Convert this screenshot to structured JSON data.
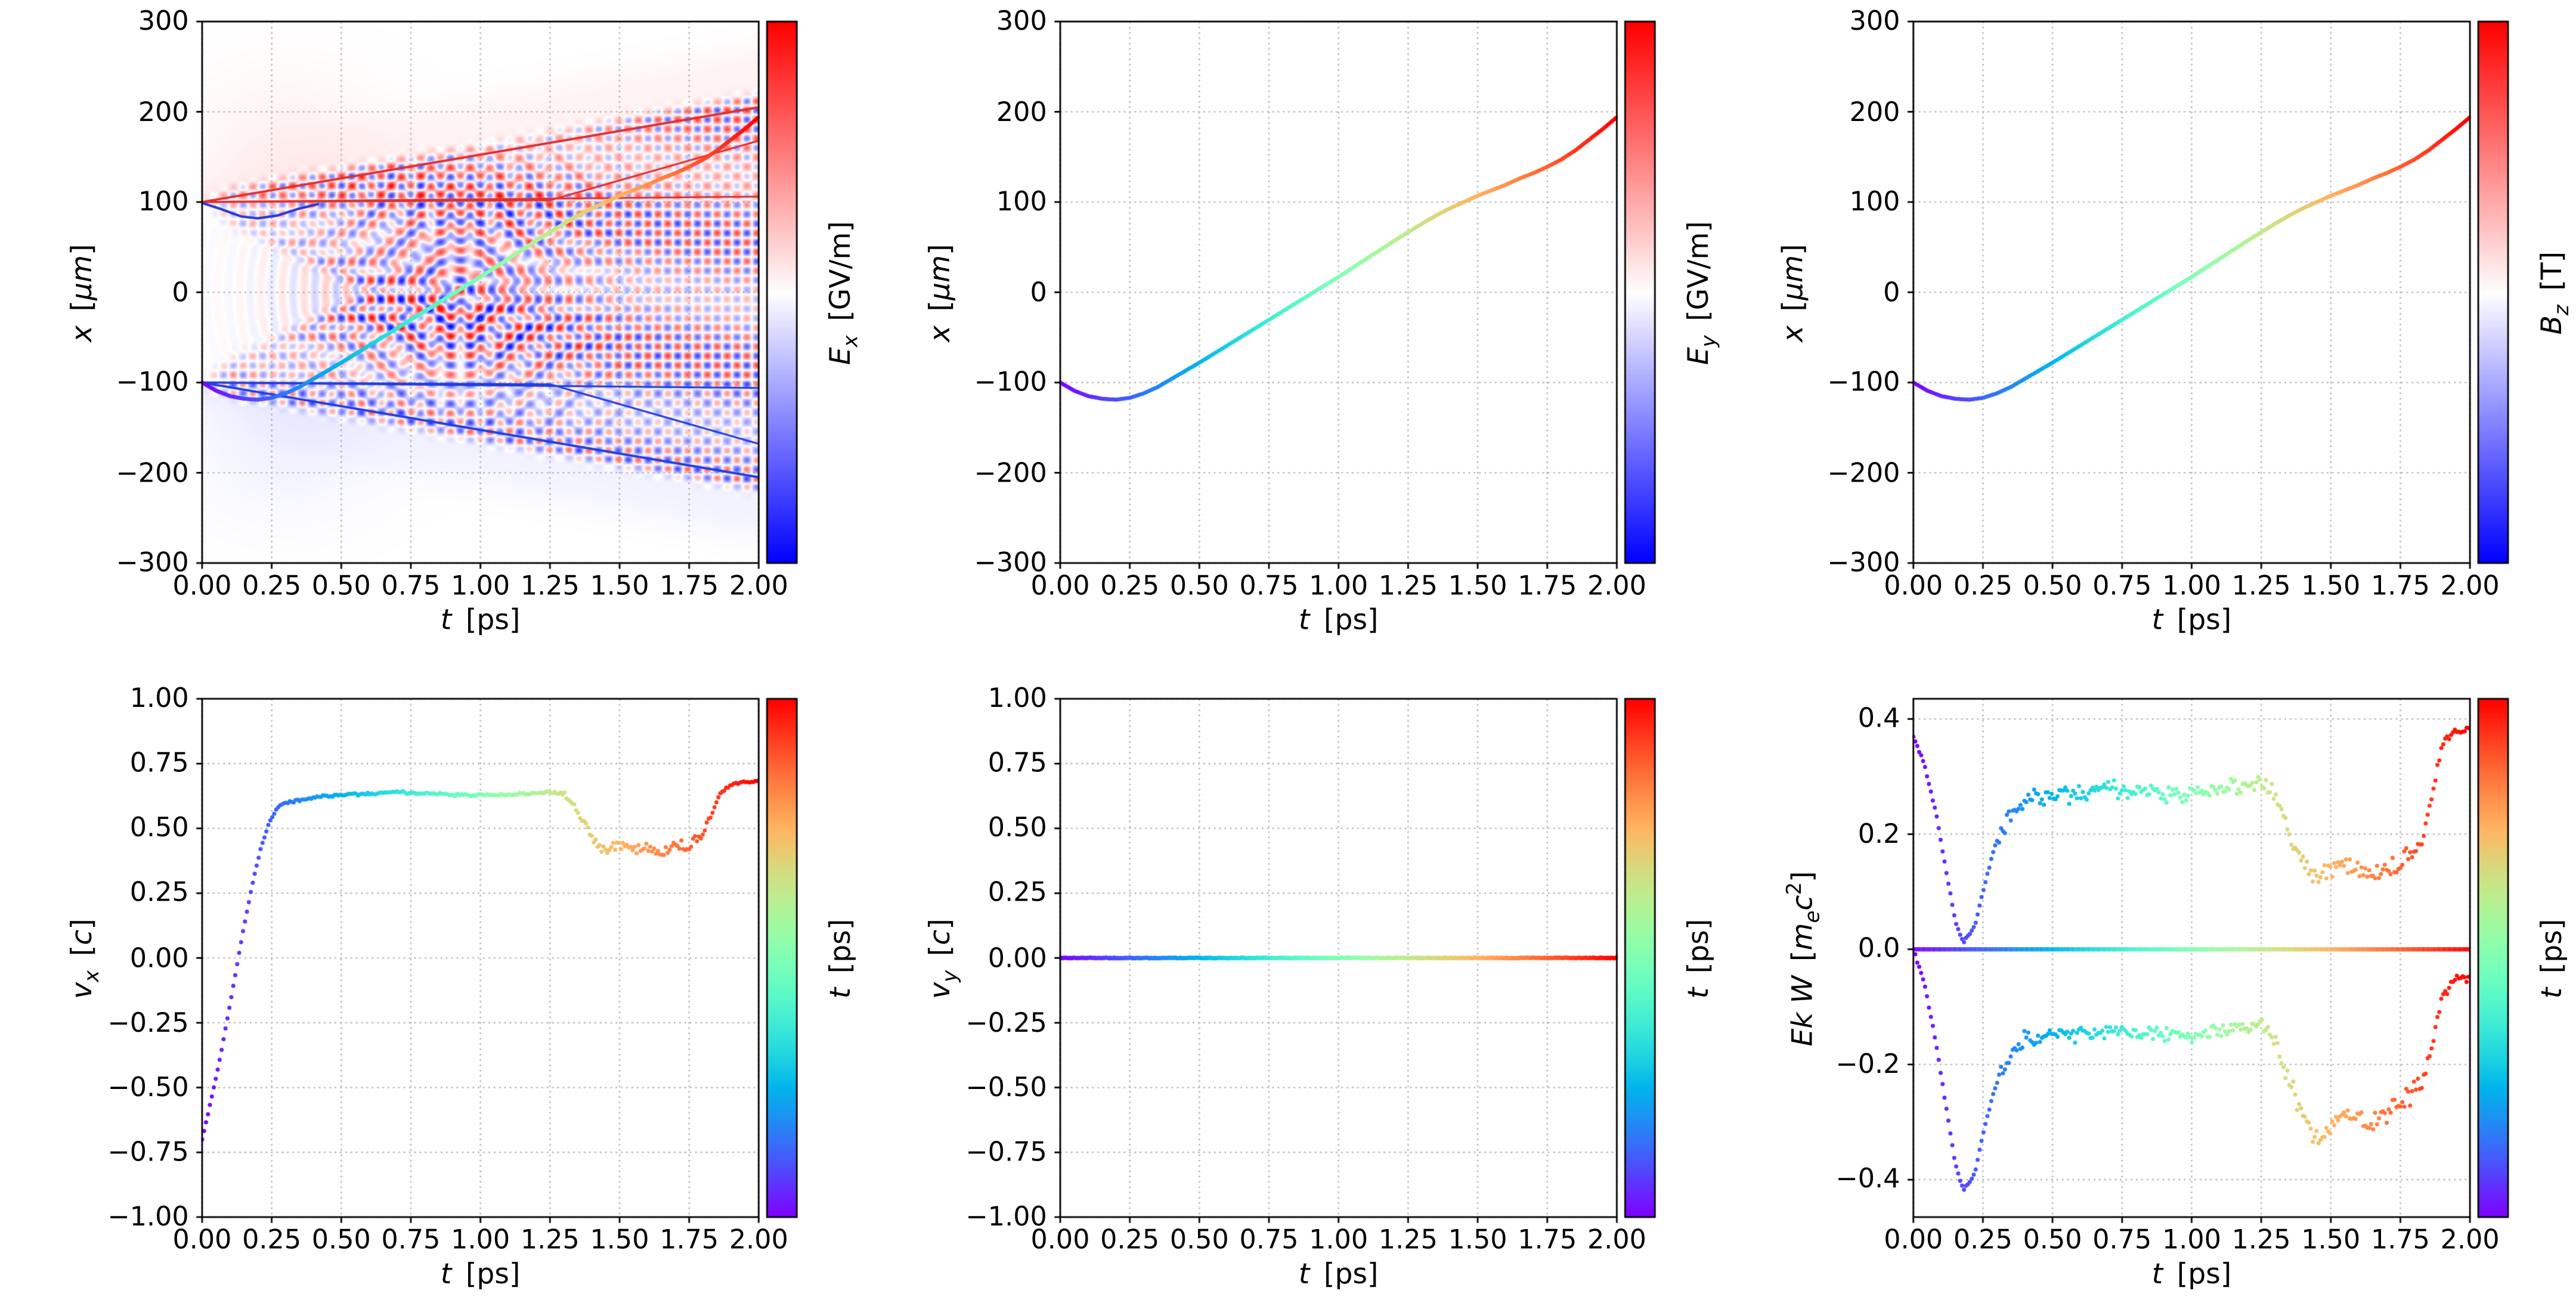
{
  "figure": {
    "background": "#ffffff",
    "kind": "matplotlib-style 2x3 subplot grid of particle tracking diagnostics"
  },
  "colors": {
    "grid": "#b0b0b0",
    "axis": "#000000",
    "red_line": "#e03030",
    "blue_line": "#2040e0"
  },
  "chart_data": {
    "type": "multi-panel",
    "time_range": [
      0,
      2
    ],
    "panels": [
      {
        "id": "x-vs-t-ex",
        "kind": "field+trajectory",
        "xlabel": "*t* [ps]",
        "ylabel": "*x* [*μm*]",
        "cbar_label": "*E_x_* [GV/m]",
        "cbar_cmap": "bwr",
        "xlim": [
          0,
          2
        ],
        "ylim": [
          -300,
          300
        ],
        "xticks": [
          0,
          0.25,
          0.5,
          0.75,
          1,
          1.25,
          1.5,
          1.75,
          2
        ],
        "yticks": [
          -300,
          -200,
          -100,
          0,
          100,
          200,
          300
        ],
        "xtick_decimals": 2,
        "ytick_decimals": 0,
        "layers": [
          "field",
          "overlays",
          "trajectory"
        ]
      },
      {
        "id": "x-vs-t-ey",
        "kind": "trajectory",
        "xlabel": "*t* [ps]",
        "ylabel": "*x* [*μm*]",
        "cbar_label": "*E_y_* [GV/m]",
        "cbar_cmap": "bwr",
        "xlim": [
          0,
          2
        ],
        "ylim": [
          -300,
          300
        ],
        "xticks": [
          0,
          0.25,
          0.5,
          0.75,
          1,
          1.25,
          1.5,
          1.75,
          2
        ],
        "yticks": [
          -300,
          -200,
          -100,
          0,
          100,
          200,
          300
        ],
        "xtick_decimals": 2,
        "ytick_decimals": 0,
        "layers": [
          "trajectory"
        ]
      },
      {
        "id": "x-vs-t-bz",
        "kind": "trajectory",
        "xlabel": "*t* [ps]",
        "ylabel": "*x* [*μm*]",
        "cbar_label": "*B_z_* [T]",
        "cbar_cmap": "bwr",
        "xlim": [
          0,
          2
        ],
        "ylim": [
          -300,
          300
        ],
        "xticks": [
          0,
          0.25,
          0.5,
          0.75,
          1,
          1.25,
          1.5,
          1.75,
          2
        ],
        "yticks": [
          -300,
          -200,
          -100,
          0,
          100,
          200,
          300
        ],
        "xtick_decimals": 2,
        "ytick_decimals": 0,
        "layers": [
          "trajectory"
        ]
      },
      {
        "id": "vx-vs-t",
        "kind": "scatter",
        "xlabel": "*t* [ps]",
        "ylabel": "*v_x_* [*c*]",
        "cbar_label": "*t* [ps]",
        "cbar_cmap": "rainbow",
        "xlim": [
          0,
          2
        ],
        "ylim": [
          -1,
          1
        ],
        "xticks": [
          0,
          0.25,
          0.5,
          0.75,
          1,
          1.25,
          1.5,
          1.75,
          2
        ],
        "yticks": [
          -1,
          -0.75,
          -0.5,
          -0.25,
          0,
          0.25,
          0.5,
          0.75,
          1
        ],
        "xtick_decimals": 2,
        "ytick_decimals": 2,
        "layers": [
          "scatter:vx"
        ]
      },
      {
        "id": "vy-vs-t",
        "kind": "scatter",
        "xlabel": "*t* [ps]",
        "ylabel": "*v_y_* [*c*]",
        "cbar_label": "*t* [ps]",
        "cbar_cmap": "rainbow",
        "xlim": [
          0,
          2
        ],
        "ylim": [
          -1,
          1
        ],
        "xticks": [
          0,
          0.25,
          0.5,
          0.75,
          1,
          1.25,
          1.5,
          1.75,
          2
        ],
        "yticks": [
          -1,
          -0.75,
          -0.5,
          -0.25,
          0,
          0.25,
          0.5,
          0.75,
          1
        ],
        "xtick_decimals": 2,
        "ytick_decimals": 2,
        "layers": [
          "scatter:vy"
        ]
      },
      {
        "id": "ekw-vs-t",
        "kind": "scatter",
        "xlabel": "*t* [ps]",
        "ylabel": "*Ek W* [*m_e_c*^2^]",
        "cbar_label": "*t* [ps]",
        "cbar_cmap": "rainbow",
        "xlim": [
          0,
          2
        ],
        "ylim": [
          -0.465,
          0.435
        ],
        "xticks": [
          0,
          0.25,
          0.5,
          0.75,
          1,
          1.25,
          1.5,
          1.75,
          2
        ],
        "yticks": [
          -0.4,
          -0.2,
          0,
          0.2,
          0.4
        ],
        "xtick_decimals": 2,
        "ytick_decimals": 1,
        "layers": [
          "scatter:w",
          "scatter:ek",
          "line:zero"
        ]
      }
    ],
    "trajectory": {
      "color_by": "t",
      "colormap": "rainbow",
      "t": [
        0,
        0.05,
        0.1,
        0.15,
        0.2,
        0.25,
        0.3,
        0.35,
        0.4,
        0.5,
        0.6,
        0.7,
        0.8,
        0.9,
        1.0,
        1.1,
        1.2,
        1.3,
        1.35,
        1.4,
        1.45,
        1.5,
        1.55,
        1.6,
        1.65,
        1.7,
        1.75,
        1.8,
        1.85,
        1.9,
        1.95,
        2.0
      ],
      "x": [
        -100,
        -109,
        -115,
        -118,
        -119,
        -117,
        -112,
        -105,
        -96,
        -78,
        -59,
        -40,
        -21,
        -2,
        17,
        37,
        57,
        76,
        85,
        93,
        100,
        107,
        113,
        119,
        126,
        132,
        139,
        147,
        157,
        169,
        181,
        194
      ]
    },
    "series": {
      "vx": {
        "dt": 0.007,
        "radius": 1.25,
        "t": [
          0,
          0.03,
          0.06,
          0.09,
          0.12,
          0.15,
          0.18,
          0.21,
          0.24,
          0.27,
          0.3,
          0.4,
          0.5,
          0.7,
          0.9,
          1.1,
          1.25,
          1.3,
          1.33,
          1.36,
          1.4,
          1.45,
          1.5,
          1.55,
          1.6,
          1.65,
          1.7,
          1.75,
          1.8,
          1.83,
          1.86,
          1.9,
          1.95,
          2.0
        ],
        "v": [
          -0.7,
          -0.56,
          -0.41,
          -0.24,
          -0.06,
          0.12,
          0.28,
          0.42,
          0.52,
          0.58,
          0.6,
          0.62,
          0.63,
          0.64,
          0.63,
          0.63,
          0.64,
          0.63,
          0.6,
          0.55,
          0.46,
          0.42,
          0.44,
          0.42,
          0.43,
          0.4,
          0.44,
          0.43,
          0.47,
          0.55,
          0.63,
          0.67,
          0.68,
          0.68
        ],
        "noise": [
          [
            0,
            0.3,
            0.004
          ],
          [
            0.3,
            1.3,
            0.007
          ],
          [
            1.3,
            1.82,
            0.03
          ],
          [
            1.82,
            2.01,
            0.008
          ]
        ]
      },
      "vy": {
        "dt": 0.004,
        "radius": 1.3,
        "t": [
          0,
          2
        ],
        "v": [
          0,
          0
        ],
        "noise": [
          [
            0,
            2.01,
            0.002
          ]
        ]
      },
      "ek": {
        "dt": 0.007,
        "radius": 1.25,
        "t": [
          0,
          0.04,
          0.08,
          0.12,
          0.15,
          0.18,
          0.22,
          0.26,
          0.3,
          0.35,
          0.4,
          0.5,
          0.7,
          0.9,
          1.1,
          1.25,
          1.32,
          1.38,
          1.45,
          1.55,
          1.65,
          1.75,
          1.82,
          1.86,
          1.9,
          1.95,
          2.0
        ],
        "v": [
          0.37,
          0.32,
          0.24,
          0.13,
          0.05,
          0.01,
          0.04,
          0.12,
          0.19,
          0.24,
          0.26,
          0.27,
          0.28,
          0.27,
          0.28,
          0.29,
          0.25,
          0.16,
          0.13,
          0.15,
          0.13,
          0.15,
          0.17,
          0.25,
          0.36,
          0.38,
          0.38
        ],
        "noise": [
          [
            0,
            0.3,
            0.004
          ],
          [
            0.3,
            1.3,
            0.022
          ],
          [
            1.3,
            1.86,
            0.025
          ],
          [
            1.86,
            2.01,
            0.012
          ]
        ]
      },
      "w": {
        "dt": 0.007,
        "radius": 1.25,
        "t": [
          0,
          0.04,
          0.08,
          0.12,
          0.15,
          0.18,
          0.22,
          0.26,
          0.3,
          0.35,
          0.4,
          0.5,
          0.7,
          0.9,
          1.1,
          1.25,
          1.32,
          1.38,
          1.45,
          1.55,
          1.65,
          1.75,
          1.82,
          1.86,
          1.9,
          1.95,
          2.0
        ],
        "v": [
          0,
          -0.06,
          -0.16,
          -0.28,
          -0.37,
          -0.42,
          -0.39,
          -0.3,
          -0.23,
          -0.18,
          -0.16,
          -0.15,
          -0.14,
          -0.15,
          -0.14,
          -0.13,
          -0.18,
          -0.27,
          -0.33,
          -0.29,
          -0.3,
          -0.27,
          -0.24,
          -0.18,
          -0.08,
          -0.05,
          -0.05
        ],
        "noise": [
          [
            0,
            0.3,
            0.004
          ],
          [
            0.3,
            1.3,
            0.02
          ],
          [
            1.3,
            1.86,
            0.025
          ],
          [
            1.86,
            2.01,
            0.012
          ]
        ]
      },
      "zero": {
        "dt": 0.005,
        "radius": 1.3,
        "t": [
          0,
          2
        ],
        "v": [
          0,
          0
        ],
        "noise": []
      }
    },
    "field_overlay_lines": [
      {
        "color": "#e03030",
        "lw": 1.4,
        "pts": [
          [
            0,
            100
          ],
          [
            2,
            205
          ]
        ]
      },
      {
        "color": "#e03030",
        "lw": 1.1,
        "pts": [
          [
            0,
            100
          ],
          [
            1.25,
            102
          ],
          [
            2,
            168
          ]
        ]
      },
      {
        "color": "#e03030",
        "lw": 1.1,
        "pts": [
          [
            0,
            100
          ],
          [
            2,
            106
          ]
        ]
      },
      {
        "color": "#2040e0",
        "lw": 1.4,
        "pts": [
          [
            0,
            -100
          ],
          [
            2,
            -205
          ]
        ]
      },
      {
        "color": "#2040e0",
        "lw": 1.1,
        "pts": [
          [
            0,
            -100
          ],
          [
            1.25,
            -102
          ],
          [
            2,
            -168
          ]
        ]
      },
      {
        "color": "#2040e0",
        "lw": 1.1,
        "pts": [
          [
            0,
            -100
          ],
          [
            2,
            -106
          ]
        ]
      },
      {
        "color": "#2838d8",
        "lw": 1.5,
        "pts": [
          [
            0,
            99
          ],
          [
            0.07,
            92
          ],
          [
            0.14,
            84
          ],
          [
            0.2,
            82
          ],
          [
            0.27,
            85
          ],
          [
            0.34,
            92
          ],
          [
            0.42,
            98
          ]
        ]
      }
    ]
  }
}
